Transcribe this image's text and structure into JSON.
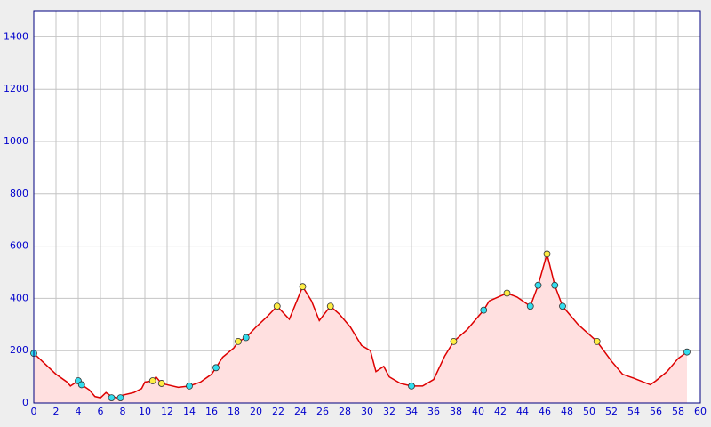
{
  "chart_data": {
    "type": "area",
    "xlim": [
      0,
      60
    ],
    "ylim": [
      0,
      1500
    ],
    "xticks": [
      0,
      2,
      4,
      6,
      8,
      10,
      12,
      14,
      16,
      18,
      20,
      22,
      24,
      26,
      28,
      30,
      32,
      34,
      36,
      38,
      40,
      42,
      44,
      46,
      48,
      50,
      52,
      54,
      56,
      58,
      60
    ],
    "yticks": [
      0,
      200,
      400,
      600,
      800,
      1000,
      1200,
      1400
    ],
    "grid": true,
    "series": [
      {
        "color": "#dd0000",
        "fill": "#ffe0e0",
        "x": [
          0,
          1,
          2,
          3,
          3.3,
          4,
          4.3,
          5,
          5.5,
          6,
          6.5,
          7,
          7.5,
          8,
          9,
          9.7,
          10,
          10.7,
          11,
          11.5,
          12,
          13,
          14,
          15,
          16,
          16.4,
          17,
          18,
          18.4,
          19.1,
          20,
          21,
          21.9,
          23,
          24.2,
          25,
          25.7,
          26.7,
          27.5,
          28.5,
          29.5,
          30.3,
          30.8,
          31.5,
          32,
          33,
          34,
          35,
          36,
          37,
          37.8,
          39,
          40.5,
          41,
          42.6,
          43.5,
          44.7,
          45.4,
          46.2,
          46.9,
          47.6,
          49,
          50.7,
          52,
          53,
          54,
          55.5,
          56,
          57,
          58,
          58.8
        ],
        "values": [
          190,
          150,
          110,
          80,
          65,
          85,
          70,
          50,
          25,
          20,
          40,
          25,
          20,
          30,
          40,
          55,
          80,
          85,
          100,
          75,
          70,
          60,
          65,
          80,
          110,
          135,
          175,
          210,
          235,
          250,
          290,
          330,
          370,
          320,
          445,
          390,
          315,
          370,
          340,
          290,
          220,
          200,
          120,
          140,
          100,
          75,
          65,
          65,
          90,
          180,
          235,
          280,
          355,
          390,
          420,
          405,
          370,
          450,
          570,
          450,
          370,
          300,
          235,
          160,
          110,
          95,
          70,
          85,
          120,
          170,
          195
        ]
      },
      {
        "color": "#ffee44",
        "x": [
          10.7,
          11.5,
          18.4,
          21.9,
          24.2,
          26.7,
          37.8,
          42.6,
          46.2,
          50.7
        ],
        "values": [
          85,
          75,
          235,
          370,
          445,
          370,
          235,
          420,
          570,
          235
        ]
      },
      {
        "color": "#33ddee",
        "x": [
          0,
          4,
          4.3,
          7,
          7.8,
          14,
          16.4,
          19.1,
          34,
          40.5,
          44.7,
          45.4,
          46.9,
          47.6,
          58.8
        ],
        "values": [
          190,
          85,
          70,
          20,
          20,
          65,
          135,
          250,
          65,
          355,
          370,
          450,
          450,
          370,
          195
        ]
      }
    ]
  }
}
